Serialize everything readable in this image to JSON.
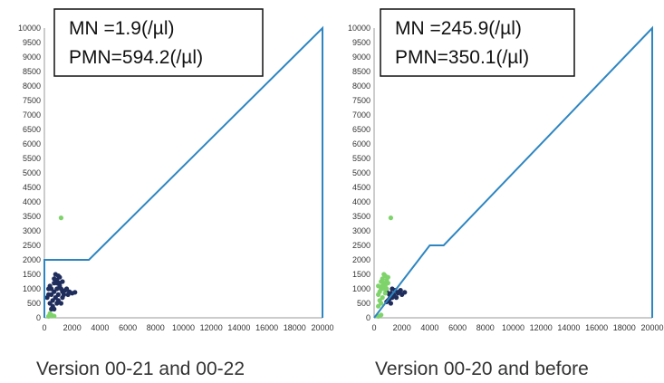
{
  "chart_data": [
    {
      "type": "scatter",
      "ylim": [
        0,
        10000
      ],
      "xlim": [
        0,
        20000
      ],
      "y_ticks": [
        "0",
        "500",
        "1000",
        "1500",
        "2000",
        "2500",
        "3000",
        "3500",
        "4000",
        "4500",
        "5000",
        "5500",
        "6000",
        "6500",
        "7000",
        "7500",
        "8000",
        "8500",
        "9000",
        "9500",
        "10000"
      ],
      "x_ticks": [
        "0",
        "2000",
        "4000",
        "6000",
        "8000",
        "10000",
        "12000",
        "14000",
        "16000",
        "18000",
        "20000"
      ],
      "info_box": [
        "MN   =1.9(/µl)",
        "PMN=594.2(/µl)"
      ],
      "caption": "Version 00-21 and 00-22",
      "threshold_line": {
        "color": "#2e86c1",
        "x": [
          0,
          0,
          3200,
          20000,
          20000
        ],
        "y": [
          0,
          2000,
          2000,
          10000,
          0
        ]
      },
      "series": [
        {
          "color": "#1f2d5c",
          "points": [
            [
              300,
              800
            ],
            [
              500,
              1000
            ],
            [
              700,
              1200
            ],
            [
              900,
              1300
            ],
            [
              1100,
              1100
            ],
            [
              1300,
              900
            ],
            [
              600,
              600
            ],
            [
              400,
              500
            ],
            [
              800,
              700
            ],
            [
              1000,
              800
            ],
            [
              1200,
              1000
            ],
            [
              200,
              700
            ],
            [
              700,
              900
            ],
            [
              900,
              1000
            ],
            [
              1500,
              950
            ],
            [
              1800,
              900
            ],
            [
              2200,
              880
            ],
            [
              1100,
              1400
            ],
            [
              800,
              1500
            ],
            [
              600,
              400
            ],
            [
              400,
              1100
            ],
            [
              300,
              1000
            ],
            [
              1000,
              600
            ],
            [
              1300,
              700
            ],
            [
              1600,
              1000
            ],
            [
              500,
              300
            ],
            [
              700,
              300
            ],
            [
              900,
              1200
            ],
            [
              1100,
              1200
            ],
            [
              1300,
              1250
            ],
            [
              1000,
              1450
            ],
            [
              700,
              1350
            ],
            [
              500,
              800
            ],
            [
              1400,
              800
            ],
            [
              1700,
              800
            ],
            [
              2000,
              850
            ],
            [
              1200,
              500
            ],
            [
              900,
              500
            ]
          ]
        },
        {
          "color": "#7ed36b",
          "points": [
            [
              300,
              50
            ],
            [
              500,
              100
            ],
            [
              700,
              60
            ],
            [
              400,
              150
            ],
            [
              1200,
              3450
            ]
          ]
        }
      ]
    },
    {
      "type": "scatter",
      "ylim": [
        0,
        10000
      ],
      "xlim": [
        0,
        20000
      ],
      "y_ticks": [
        "0",
        "500",
        "1000",
        "1500",
        "2000",
        "2500",
        "3000",
        "3500",
        "4000",
        "4500",
        "5000",
        "5500",
        "6000",
        "6500",
        "7000",
        "7500",
        "8000",
        "8500",
        "9000",
        "9500",
        "10000"
      ],
      "x_ticks": [
        "0",
        "2000",
        "4000",
        "6000",
        "8000",
        "10000",
        "12000",
        "14000",
        "16000",
        "18000",
        "20000"
      ],
      "info_box": [
        "MN   =245.9(/µl)",
        "PMN=350.1(/µl)"
      ],
      "caption": "Version 00-20 and before",
      "threshold_line": {
        "color": "#2e86c1",
        "x": [
          0,
          4000,
          5000,
          20000,
          20000
        ],
        "y": [
          0,
          2500,
          2500,
          10000,
          0
        ]
      },
      "series": [
        {
          "color": "#1f2d5c",
          "points": [
            [
              900,
              900
            ],
            [
              1100,
              800
            ],
            [
              1300,
              700
            ],
            [
              1500,
              950
            ],
            [
              1800,
              900
            ],
            [
              2200,
              880
            ],
            [
              1000,
              600
            ],
            [
              1200,
              500
            ],
            [
              1400,
              800
            ],
            [
              1700,
              850
            ],
            [
              2000,
              800
            ],
            [
              1300,
              1000
            ],
            [
              1100,
              650
            ],
            [
              900,
              550
            ],
            [
              1600,
              700
            ],
            [
              1900,
              950
            ],
            [
              1200,
              850
            ]
          ]
        },
        {
          "color": "#7ed36b",
          "points": [
            [
              300,
              800
            ],
            [
              500,
              1000
            ],
            [
              700,
              1200
            ],
            [
              600,
              1350
            ],
            [
              800,
              1450
            ],
            [
              900,
              1300
            ],
            [
              1000,
              1200
            ],
            [
              400,
              900
            ],
            [
              300,
              1100
            ],
            [
              500,
              1250
            ],
            [
              700,
              1000
            ],
            [
              800,
              1100
            ],
            [
              600,
              700
            ],
            [
              400,
              600
            ],
            [
              500,
              500
            ],
            [
              300,
              400
            ],
            [
              900,
              1000
            ],
            [
              1000,
              1400
            ],
            [
              700,
              1500
            ],
            [
              600,
              1100
            ],
            [
              800,
              850
            ],
            [
              1200,
              3450
            ],
            [
              300,
              50
            ],
            [
              500,
              100
            ]
          ]
        }
      ]
    }
  ]
}
